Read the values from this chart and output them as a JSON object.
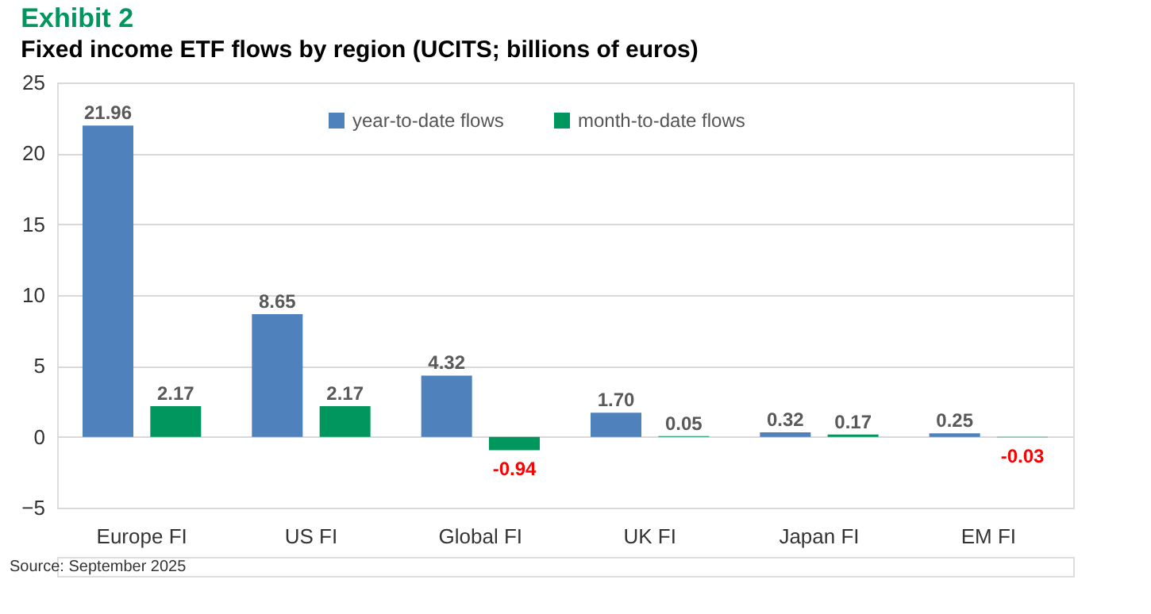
{
  "chart_data": {
    "type": "bar",
    "title": "Exhibit 2",
    "subtitle": "Fixed income ETF flows by region (UCITS; billions of euros)",
    "categories": [
      "Europe FI",
      "US FI",
      "Global FI",
      "UK FI",
      "Japan FI",
      "EM FI"
    ],
    "series": [
      {
        "name": "year-to-date flows",
        "color": "#4f81bd",
        "values": [
          21.96,
          8.65,
          4.32,
          1.7,
          0.32,
          0.25
        ],
        "value_labels": [
          "21.96",
          "8.65",
          "4.32",
          "1.70",
          "0.32",
          "0.25"
        ]
      },
      {
        "name": "month-to-date flows",
        "color": "#00965e",
        "values": [
          2.17,
          2.17,
          -0.94,
          0.05,
          0.17,
          -0.03
        ],
        "value_labels": [
          "2.17",
          "2.17",
          "-0.94",
          "0.05",
          "0.17",
          "-0.03"
        ]
      }
    ],
    "ylim": [
      -5,
      25
    ],
    "yticks": [
      -5,
      0,
      5,
      10,
      15,
      20,
      25
    ],
    "grid": "y",
    "legend": "top",
    "annotations": [
      "Source: September 2025"
    ]
  }
}
